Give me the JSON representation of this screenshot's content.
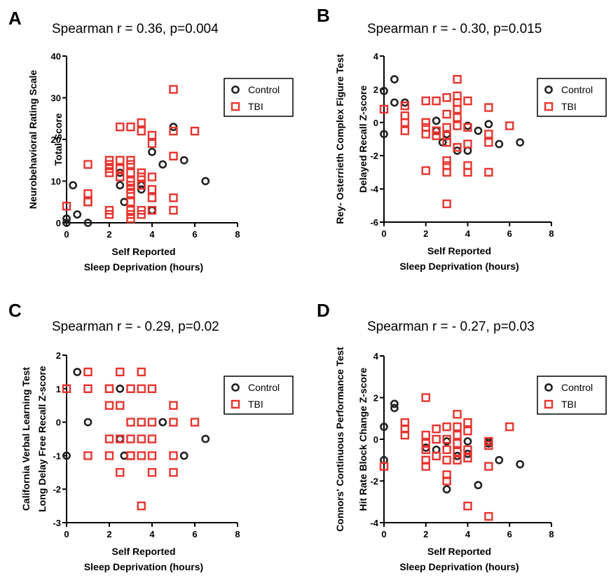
{
  "chart_data": [
    {
      "type": "scatter",
      "panel": "A",
      "title": "Spearman r = 0.36, p=0.004",
      "xlabel": [
        "Self Reported",
        "Sleep  Deprivation (hours)"
      ],
      "ylabel": [
        "Neurobehavioral Rating  Scale",
        "Total  Score"
      ],
      "xlim": [
        0,
        8
      ],
      "ylim": [
        0,
        40
      ],
      "xticks": [
        0,
        2,
        4,
        6,
        8
      ],
      "yticks": [
        0,
        10,
        20,
        30,
        40
      ],
      "legend": "top-right",
      "series": [
        {
          "name": "Control",
          "marker": "circle",
          "color": "#222222",
          "x": [
            0,
            0,
            0.3,
            0.5,
            1,
            2.5,
            2.5,
            2.7,
            3.5,
            3.5,
            4,
            4,
            4.5,
            5,
            5.5,
            6.5
          ],
          "y": [
            0,
            1,
            9,
            2,
            0,
            9,
            12,
            5,
            8,
            9,
            3,
            17,
            14,
            23,
            15,
            10
          ]
        },
        {
          "name": "TBI",
          "marker": "square",
          "color": "#e8342e",
          "x": [
            0,
            1,
            1,
            1,
            1,
            2,
            2,
            2,
            2,
            2,
            2,
            2.5,
            2.5,
            2.5,
            2.5,
            3,
            3,
            3,
            3,
            3,
            3,
            3,
            3,
            3,
            3,
            3,
            3,
            3.5,
            3.5,
            3.5,
            3.5,
            3.5,
            3.5,
            3.5,
            4,
            4,
            4,
            4,
            4,
            4,
            5,
            5,
            5,
            5,
            5,
            6
          ],
          "y": [
            4,
            14,
            7,
            5,
            5,
            15,
            14,
            13,
            12,
            3,
            2,
            23,
            15,
            11,
            13,
            23,
            15,
            14,
            12,
            10,
            9,
            8,
            7,
            5,
            3,
            2,
            1,
            24,
            22,
            12,
            11,
            9,
            3,
            2,
            21,
            19,
            11,
            8,
            6,
            3,
            32,
            22,
            16,
            6,
            3,
            22
          ]
        }
      ]
    },
    {
      "type": "scatter",
      "panel": "B",
      "title": "Spearman r = - 0.30, p=0.015",
      "xlabel": [
        "Self Reported",
        "Sleep  Deprivation (hours)"
      ],
      "ylabel": [
        "Rey- Osterrieth Complex Figure Test",
        "Delayed  Recall Z-score"
      ],
      "xlim": [
        0,
        8
      ],
      "ylim": [
        -6,
        4
      ],
      "xticks": [
        0,
        2,
        4,
        6,
        8
      ],
      "yticks": [
        -6,
        -4,
        -2,
        0,
        2,
        4
      ],
      "legend": "top-right",
      "series": [
        {
          "name": "Control",
          "marker": "circle",
          "color": "#222222",
          "x": [
            0,
            0,
            0.5,
            0.5,
            1,
            2.5,
            2.5,
            2.8,
            3,
            3.5,
            4,
            4,
            4.5,
            5,
            5.5,
            6.5
          ],
          "y": [
            1.9,
            -0.7,
            2.6,
            1.2,
            1.2,
            0.1,
            -0.5,
            -1.2,
            -0.7,
            -1.7,
            -0.2,
            -1.7,
            -0.5,
            -0.1,
            -1.3,
            -1.2
          ]
        },
        {
          "name": "TBI",
          "marker": "square",
          "color": "#e8342e",
          "x": [
            0,
            1,
            1,
            1,
            1,
            2,
            2,
            2,
            2,
            2,
            2.5,
            2.5,
            2.5,
            3,
            3,
            3,
            3,
            3,
            3,
            3,
            3,
            3,
            3.5,
            3.5,
            3.5,
            3.5,
            3.5,
            3.5,
            3.5,
            4,
            4,
            4,
            4,
            4,
            5,
            5,
            5,
            5,
            6
          ],
          "y": [
            0.8,
            1.0,
            0.4,
            0,
            -0.5,
            1.3,
            0,
            -0.3,
            -0.7,
            -2.9,
            1.3,
            -0.5,
            -0.8,
            1.5,
            0.5,
            -0.3,
            -0.8,
            -1.2,
            -2.3,
            -2.6,
            -3.0,
            -4.9,
            2.6,
            1.6,
            1.2,
            0.8,
            0.3,
            -0.2,
            -1.5,
            1.3,
            -0.3,
            -1.3,
            -2.6,
            -3.0,
            0.9,
            -0.7,
            -1.2,
            -3.0,
            -0.2
          ]
        }
      ]
    },
    {
      "type": "scatter",
      "panel": "C",
      "title": "Spearman r = - 0.29, p=0.02",
      "xlabel": [
        "Self Reported",
        "Sleep  Deprivation (hours)"
      ],
      "ylabel": [
        "California Verbal  Learning Test",
        "Long  Delay Free  Recall Z-score"
      ],
      "xlim": [
        0,
        8
      ],
      "ylim": [
        -3,
        2
      ],
      "xticks": [
        0,
        2,
        4,
        6,
        8
      ],
      "yticks": [
        -3,
        -2,
        -1,
        0,
        1,
        2
      ],
      "legend": "top-right",
      "series": [
        {
          "name": "Control",
          "marker": "circle",
          "color": "#222222",
          "x": [
            0,
            0.5,
            1,
            2.5,
            2.5,
            2.7,
            4.5,
            5.5,
            6.5
          ],
          "y": [
            -1,
            1.5,
            0,
            1,
            -0.5,
            -1,
            0,
            -1,
            -0.5
          ]
        },
        {
          "name": "TBI",
          "marker": "square",
          "color": "#e8342e",
          "x": [
            0,
            1,
            1,
            1,
            2,
            2,
            2,
            2,
            2,
            2.5,
            2.5,
            2.5,
            2.5,
            3,
            3,
            3,
            3,
            3,
            3.5,
            3.5,
            3.5,
            3.5,
            3.5,
            3.5,
            4,
            4,
            4,
            4,
            4,
            5,
            5,
            5,
            5,
            6
          ],
          "y": [
            1,
            1.5,
            1,
            -1,
            1,
            0.5,
            -0.5,
            -1,
            1,
            1.5,
            0.5,
            -0.5,
            -1.5,
            1,
            0,
            -0.5,
            -1,
            -1,
            1.5,
            1,
            0,
            -0.5,
            -1,
            -2.5,
            1,
            0,
            -0.5,
            -1,
            -1.5,
            0.5,
            0,
            -1,
            -1.5,
            0
          ]
        }
      ]
    },
    {
      "type": "scatter",
      "panel": "D",
      "title": "Spearman r = - 0.27, p=0.03",
      "xlabel": [
        "Self Reported",
        "Sleep  Deprivation (hours)"
      ],
      "ylabel": [
        "Connors' Continuous Performance Test",
        "Hit Rate Block Change Z-score"
      ],
      "xlim": [
        0,
        8
      ],
      "ylim": [
        -4,
        4
      ],
      "xticks": [
        0,
        2,
        4,
        6,
        8
      ],
      "yticks": [
        -4,
        -2,
        0,
        2,
        4
      ],
      "legend": "top-right",
      "series": [
        {
          "name": "Control",
          "marker": "circle",
          "color": "#222222",
          "x": [
            0,
            0,
            0.5,
            0.5,
            2,
            2.5,
            3,
            3,
            3.5,
            4,
            4,
            4.5,
            5,
            5,
            5.5,
            6.5
          ],
          "y": [
            0.6,
            -1.0,
            1.7,
            1.5,
            -0.4,
            -0.5,
            -0.1,
            -2.4,
            -0.8,
            -0.1,
            -0.7,
            -2.2,
            -0.1,
            -0.2,
            -1.0,
            -1.2
          ]
        },
        {
          "name": "TBI",
          "marker": "square",
          "color": "#e8342e",
          "x": [
            0,
            1,
            1,
            1,
            2,
            2,
            2,
            2,
            2,
            2,
            2.5,
            2.5,
            2.5,
            3,
            3,
            3,
            3,
            3,
            3,
            3.5,
            3.5,
            3.5,
            3.5,
            3.5,
            3.5,
            4,
            4,
            4,
            4,
            4,
            5,
            5,
            5,
            5,
            6
          ],
          "y": [
            -1.3,
            0.8,
            0.5,
            0.2,
            2.0,
            0.2,
            -0.2,
            -0.5,
            -1.0,
            -1.3,
            0.5,
            0,
            -0.8,
            0.6,
            0,
            -0.5,
            -1.0,
            -1.7,
            -2.0,
            1.2,
            0.6,
            0.2,
            -0.2,
            -0.6,
            -1.0,
            0.8,
            0.4,
            -0.5,
            -0.9,
            -3.2,
            -0.1,
            -0.3,
            -1.3,
            -3.7,
            0.6
          ]
        }
      ]
    }
  ]
}
